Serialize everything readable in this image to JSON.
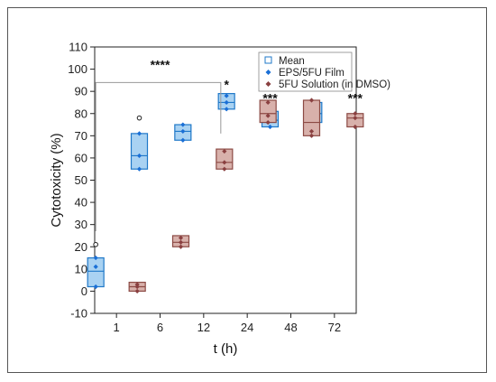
{
  "chart_data": {
    "type": "box",
    "title": "",
    "xlabel": "t (h)",
    "ylabel": "Cytotoxicity (%)",
    "ylim": [
      -10,
      110
    ],
    "yticks": [
      -10,
      0,
      10,
      20,
      30,
      40,
      50,
      60,
      70,
      80,
      90,
      100,
      110
    ],
    "categories": [
      "1",
      "6",
      "12",
      "24",
      "48",
      "72"
    ],
    "colors": {
      "film_fill": "#a9d2f2",
      "film_stroke": "#1f78c8",
      "film_point": "#1a6fd6",
      "solution_fill": "#d8b1ab",
      "solution_stroke": "#8c4a44",
      "solution_point": "#8a4040",
      "bracket": "#999999"
    },
    "legend": {
      "placement": "top-right",
      "mean_label": "Mean",
      "items": [
        "EPS/5FU Film",
        "5FU Solution (in DMSO)"
      ]
    },
    "series": [
      {
        "name": "EPS/5FU Film",
        "groups": [
          {
            "category": "1",
            "q1": 2,
            "median": 9,
            "q3": 15,
            "points": [
              2,
              11,
              15
            ],
            "outlier": 21
          },
          {
            "category": "6",
            "q1": 55,
            "median": 61,
            "q3": 71,
            "points": [
              55,
              61,
              71
            ],
            "outlier": 78
          },
          {
            "category": "12",
            "q1": 68,
            "median": 72,
            "q3": 75,
            "points": [
              68,
              72,
              75
            ]
          },
          {
            "category": "24",
            "q1": 82,
            "median": 85,
            "q3": 89,
            "points": [
              82,
              85,
              88
            ]
          },
          {
            "category": "48",
            "q1": 74,
            "median": 77,
            "q3": 81,
            "points": [
              74,
              78,
              80
            ]
          },
          {
            "category": "72",
            "q1": 76,
            "median": 80,
            "q3": 85,
            "points": [
              76,
              78,
              85
            ]
          }
        ]
      },
      {
        "name": "5FU Solution (in DMSO)",
        "groups": [
          {
            "category": "1",
            "q1": 0,
            "median": 2,
            "q3": 4,
            "points": [
              0,
              2,
              3
            ]
          },
          {
            "category": "6",
            "q1": 20,
            "median": 22,
            "q3": 25,
            "points": [
              20,
              22,
              24
            ]
          },
          {
            "category": "12",
            "q1": 55,
            "median": 58,
            "q3": 64,
            "points": [
              55,
              58,
              63
            ]
          },
          {
            "category": "24",
            "q1": 76,
            "median": 80,
            "q3": 86,
            "points": [
              76,
              79,
              85
            ]
          },
          {
            "category": "48",
            "q1": 70,
            "median": 76,
            "q3": 86,
            "points": [
              70,
              72,
              86
            ]
          },
          {
            "category": "72",
            "q1": 74,
            "median": 78,
            "q3": 80,
            "points": [
              74,
              78,
              80
            ]
          }
        ]
      }
    ],
    "annotations": [
      {
        "text": "****",
        "category": "6",
        "y": 100,
        "bracket": {
          "from": "1",
          "to": "12",
          "y": 94
        }
      },
      {
        "text": "*",
        "category": "24",
        "series": 0,
        "y": 91
      },
      {
        "text": "**",
        "category": "24",
        "series": 1,
        "y": 91
      },
      {
        "text": "***",
        "category": "48",
        "series": 0,
        "y": 85
      },
      {
        "text": "****",
        "category": "48",
        "series": 1,
        "y": 91
      },
      {
        "text": "***",
        "category": "72",
        "series": 0,
        "y": 91
      },
      {
        "text": "***",
        "category": "72",
        "series": 1,
        "y": 85
      }
    ]
  }
}
